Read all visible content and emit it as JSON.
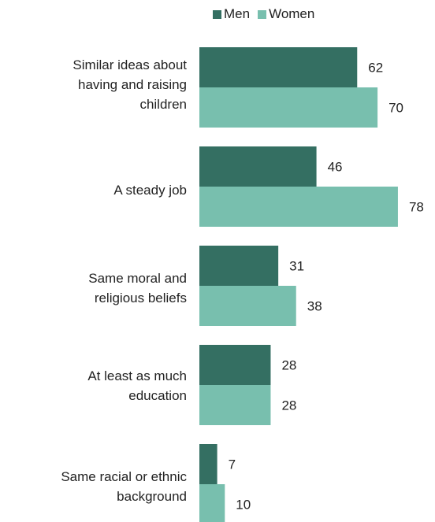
{
  "chart_data": {
    "type": "bar",
    "orientation": "horizontal",
    "categories": [
      "Similar ideas about having and raising children",
      "A steady job",
      "Same moral and religious beliefs",
      "At least as much education",
      "Same racial or ethnic background"
    ],
    "category_lines": [
      [
        "Similar ideas about",
        "having and raising",
        "children"
      ],
      [
        "A steady job"
      ],
      [
        "Same moral and",
        "religious beliefs"
      ],
      [
        "At least as much",
        "education"
      ],
      [
        "Same racial or ethnic",
        "background"
      ]
    ],
    "series": [
      {
        "name": "Men",
        "color": "#346f62",
        "values": [
          62,
          46,
          31,
          28,
          7
        ]
      },
      {
        "name": "Women",
        "color": "#78bfae",
        "values": [
          70,
          78,
          38,
          28,
          10
        ]
      }
    ],
    "xlim": [
      0,
      80
    ],
    "grid": false,
    "legend_position": "top",
    "data_labels": true
  }
}
